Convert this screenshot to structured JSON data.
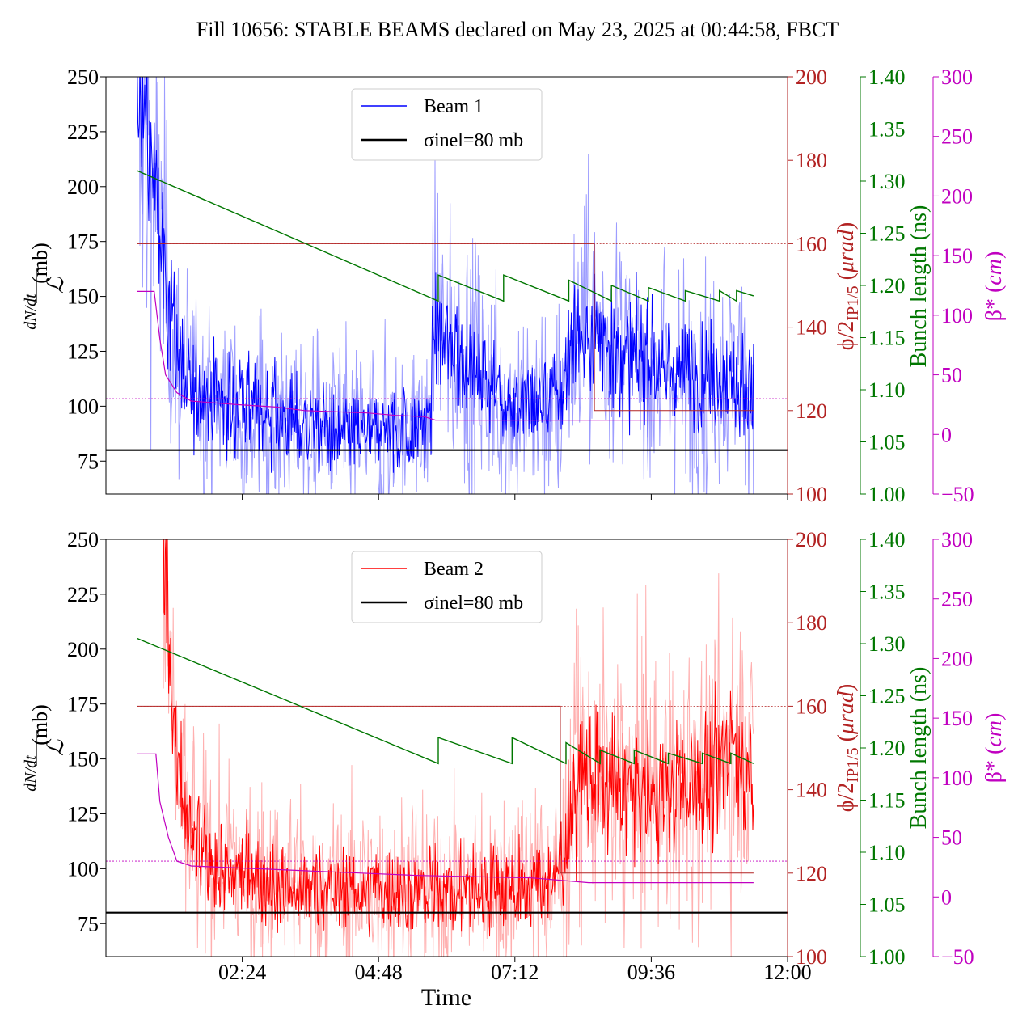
{
  "figure_title": "Fill 10656: STABLE BEAMS declared on May 23, 2025 at 00:44:58, FBCT",
  "colors": {
    "beam1": "#0000ff",
    "beam1_light": "#9d9dff",
    "beam2": "#ff0000",
    "beam2_light": "#ffb0b0",
    "crossing": "#b22222",
    "bunch": "#007700",
    "betastar": "#c000c0",
    "reference": "#000000"
  },
  "chart_data": [
    {
      "type": "line",
      "panel": "top",
      "legend": [
        "Beam 1",
        "σinel=80 mb"
      ],
      "legend_placement": "top-center",
      "ylabel_left": "dN/dt / ℒ (mb)",
      "ylabel_right1": "ϕ/2IP1/5 (μrad)",
      "ylabel_right2": "Bunch length (ns)",
      "ylabel_right3": "β* (cm)",
      "xlabel": "",
      "x_ticks": [
        "02:24",
        "04:48",
        "07:12",
        "09:36",
        "12:00"
      ],
      "x_range_hours": [
        0.0,
        12.0
      ],
      "x_tick_hours": [
        2.4,
        4.8,
        7.2,
        9.6,
        12.0
      ],
      "y_left_range": [
        60,
        250
      ],
      "y_left_ticks": [
        75,
        100,
        125,
        150,
        175,
        200,
        225,
        250
      ],
      "y_right1_range": [
        100,
        200
      ],
      "y_right1_ticks": [
        100,
        120,
        140,
        160,
        180,
        200
      ],
      "y_right2_range": [
        1.0,
        1.4
      ],
      "y_right2_ticks": [
        "1.00",
        "1.05",
        "1.10",
        "1.15",
        "1.20",
        "1.25",
        "1.30",
        "1.35",
        "1.40"
      ],
      "y_right3_range": [
        -50,
        300
      ],
      "y_right3_ticks": [
        "−50",
        "0",
        "50",
        "100",
        "150",
        "200",
        "250",
        "300"
      ],
      "reference_sigma_inel_mb": 80,
      "cross_section_mean": {
        "hours": [
          0.55,
          0.85,
          1.0,
          1.2,
          1.4,
          2.0,
          3.0,
          4.0,
          5.0,
          5.7,
          5.78,
          6.0,
          6.8,
          7.0,
          8.0,
          8.2,
          8.6,
          8.9,
          9.2,
          10.0,
          11.0,
          11.4
        ],
        "values": [
          240,
          200,
          170,
          130,
          110,
          102,
          95,
          88,
          88,
          92,
          140,
          128,
          110,
          100,
          102,
          130,
          135,
          128,
          123,
          115,
          112,
          108
        ]
      },
      "crossing_angle_urad": {
        "hours": [
          0.55,
          8.6,
          8.6,
          11.4
        ],
        "values": [
          160,
          160,
          120,
          120
        ]
      },
      "bunch_length_ns": {
        "hours": [
          0.55,
          5.85,
          5.85,
          7.0,
          7.0,
          8.15,
          8.15,
          8.9,
          8.9,
          9.55,
          9.55,
          10.2,
          10.2,
          10.8,
          10.8,
          11.1,
          11.1,
          11.4
        ],
        "values": [
          1.31,
          1.185,
          1.21,
          1.185,
          1.21,
          1.185,
          1.205,
          1.185,
          1.2,
          1.185,
          1.198,
          1.185,
          1.195,
          1.185,
          1.195,
          1.185,
          1.195,
          1.19
        ]
      },
      "beta_star_cm": {
        "hours": [
          0.55,
          0.85,
          0.95,
          1.05,
          1.25,
          1.5,
          2.3,
          3.0,
          3.5,
          4.6,
          5.1,
          5.6,
          5.8,
          11.4
        ],
        "values": [
          120,
          120,
          80,
          50,
          35,
          28,
          25,
          23,
          20,
          18,
          16,
          15,
          12,
          12
        ]
      }
    },
    {
      "type": "line",
      "panel": "bottom",
      "legend": [
        "Beam 2",
        "σinel=80 mb"
      ],
      "legend_placement": "top-center",
      "ylabel_left": "dN/dt / ℒ (mb)",
      "ylabel_right1": "ϕ/2IP1/5 (μrad)",
      "ylabel_right2": "Bunch length (ns)",
      "ylabel_right3": "β* (cm)",
      "xlabel": "Time",
      "x_ticks": [
        "02:24",
        "04:48",
        "07:12",
        "09:36",
        "12:00"
      ],
      "x_range_hours": [
        0.0,
        12.0
      ],
      "x_tick_hours": [
        2.4,
        4.8,
        7.2,
        9.6,
        12.0
      ],
      "y_left_range": [
        60,
        250
      ],
      "y_left_ticks": [
        75,
        100,
        125,
        150,
        175,
        200,
        225,
        250
      ],
      "y_right1_range": [
        100,
        200
      ],
      "y_right1_ticks": [
        100,
        120,
        140,
        160,
        180,
        200
      ],
      "y_right2_range": [
        1.0,
        1.4
      ],
      "y_right2_ticks": [
        "1.00",
        "1.05",
        "1.10",
        "1.15",
        "1.20",
        "1.25",
        "1.30",
        "1.35",
        "1.40"
      ],
      "y_right3_range": [
        -50,
        300
      ],
      "y_right3_ticks": [
        "−50",
        "0",
        "50",
        "100",
        "150",
        "200",
        "250",
        "300"
      ],
      "reference_sigma_inel_mb": 80,
      "cross_section_mean": {
        "hours": [
          1.0,
          1.1,
          1.2,
          1.35,
          1.6,
          2.0,
          3.0,
          4.0,
          5.0,
          6.0,
          7.0,
          7.9,
          8.1,
          8.3,
          8.6,
          9.2,
          10.0,
          10.8,
          11.0,
          11.4
        ],
        "values": [
          250,
          200,
          160,
          125,
          110,
          100,
          93,
          90,
          90,
          90,
          92,
          95,
          110,
          145,
          140,
          135,
          135,
          145,
          160,
          140
        ]
      },
      "crossing_angle_urad": {
        "hours": [
          0.55,
          8.0,
          8.0,
          11.4
        ],
        "values": [
          160,
          160,
          120,
          120
        ]
      },
      "bunch_length_ns": {
        "hours": [
          0.55,
          5.85,
          5.85,
          7.15,
          7.15,
          8.1,
          8.1,
          8.7,
          8.7,
          9.3,
          9.3,
          9.9,
          9.9,
          10.5,
          10.5,
          11.0,
          11.0,
          11.4
        ],
        "values": [
          1.305,
          1.185,
          1.21,
          1.185,
          1.21,
          1.185,
          1.205,
          1.185,
          1.198,
          1.185,
          1.198,
          1.185,
          1.195,
          1.185,
          1.195,
          1.185,
          1.195,
          1.185
        ]
      },
      "beta_star_cm": {
        "hours": [
          0.55,
          0.88,
          0.95,
          1.1,
          1.25,
          1.5,
          2.5,
          3.5,
          4.5,
          5.5,
          6.5,
          7.5,
          8.5,
          11.4
        ],
        "values": [
          120,
          120,
          80,
          50,
          30,
          26,
          24,
          22,
          20,
          18,
          17,
          16,
          12,
          12
        ]
      }
    }
  ]
}
